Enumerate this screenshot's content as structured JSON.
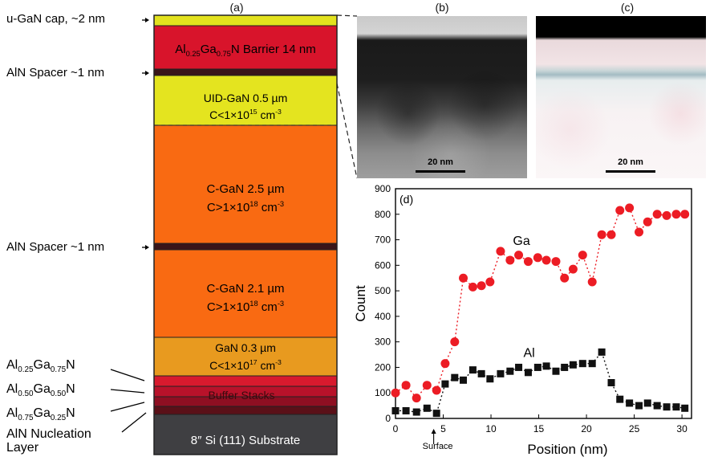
{
  "panel_labels": {
    "a": "(a)",
    "b": "(b)",
    "c": "(c)",
    "d": "(d)"
  },
  "stack": {
    "cap_label": "u-GaN cap, ~2 nm",
    "barrier_label": {
      "pre": "Al",
      "sub1": "0.25",
      "mid": "Ga",
      "sub2": "0.75",
      "post": "N Barrier 14 nm"
    },
    "spacer_label_top": "AlN Spacer ~1 nm",
    "uid_line1": "UID-GaN 0.5 µm",
    "uid_line2": {
      "pre": "C<1×10",
      "sup": "15",
      "post": " cm",
      "sup2": "-3"
    },
    "cgan1_line1": "C-GaN 2.5 µm",
    "cgan1_line2": {
      "pre": "C>1×10",
      "sup": "18",
      "post": " cm",
      "sup2": "-3"
    },
    "spacer_label_mid": "AlN Spacer ~1 nm",
    "cgan2_line1": "C-GaN 2.1 µm",
    "cgan2_line2": {
      "pre": "C>1×10",
      "sup": "18",
      "post": " cm",
      "sup2": "-3"
    },
    "gan_line1": "GaN 0.3 µm",
    "gan_line2": {
      "pre": "C<1×10",
      "sup": "17",
      "post": " cm",
      "sup2": "-3"
    },
    "buffer_label": "Buffer Stacks",
    "side_al25": {
      "pre": "Al",
      "sub1": "0.25",
      "mid": "Ga",
      "sub2": "0.75",
      "post": "N"
    },
    "side_al50": {
      "pre": "Al",
      "sub1": "0.50",
      "mid": "Ga",
      "sub2": "0.50",
      "post": "N"
    },
    "side_al75": {
      "pre": "Al",
      "sub1": "0.75",
      "mid": "Ga",
      "sub2": "0.25",
      "post": "N"
    },
    "nucleation_line1": "AlN Nucleation",
    "nucleation_line2": "Layer",
    "substrate_label": "8″ Si (111) Substrate",
    "colors": {
      "cap": "#e3e21e",
      "barrier": "#d8142b",
      "spacer": "#3a1519",
      "uid": "#e4e41f",
      "cgan": "#f96a12",
      "gan": "#e89a1f",
      "buffer_a": "#d81a2e",
      "buffer_b": "#b8122a",
      "buffer_c": "#8e0f22",
      "nucleation": "#5a1018",
      "substrate": "#3f3f42"
    }
  },
  "tem": {
    "scalebar_b": "20 nm",
    "scalebar_c": "20 nm"
  },
  "chart_data": {
    "type": "scatter",
    "xlabel": "Position (nm)",
    "ylabel": "Count",
    "xlim": [
      0,
      31
    ],
    "ylim": [
      0,
      900
    ],
    "xticks": [
      0,
      5,
      10,
      15,
      20,
      25,
      30
    ],
    "yticks": [
      0,
      100,
      200,
      300,
      400,
      500,
      600,
      700,
      800,
      900
    ],
    "annotation": "Surface",
    "annotation_x": 4,
    "series": [
      {
        "name": "Ga",
        "color": "#ec1c24",
        "marker": "circle",
        "x": [
          0,
          1.1,
          2.2,
          3.3,
          4.3,
          5.2,
          6.2,
          7.1,
          8.1,
          9.0,
          9.9,
          11.0,
          12.0,
          12.9,
          13.9,
          14.9,
          15.8,
          16.8,
          17.7,
          18.6,
          19.6,
          20.6,
          21.6,
          22.6,
          23.5,
          24.5,
          25.5,
          26.4,
          27.4,
          28.4,
          29.4,
          30.3
        ],
        "values": [
          100,
          130,
          80,
          130,
          110,
          215,
          300,
          550,
          515,
          520,
          535,
          655,
          620,
          640,
          615,
          630,
          620,
          615,
          550,
          585,
          640,
          535,
          720,
          720,
          815,
          825,
          730,
          770,
          800,
          795,
          800,
          800
        ]
      },
      {
        "name": "Al",
        "color": "#111111",
        "marker": "square",
        "x": [
          0,
          1.1,
          2.2,
          3.3,
          4.3,
          5.2,
          6.2,
          7.1,
          8.1,
          9.0,
          9.9,
          11.0,
          12.0,
          12.9,
          13.9,
          14.9,
          15.8,
          16.8,
          17.7,
          18.6,
          19.6,
          20.6,
          21.6,
          22.6,
          23.5,
          24.5,
          25.5,
          26.4,
          27.4,
          28.4,
          29.4,
          30.3
        ],
        "values": [
          30,
          30,
          25,
          40,
          20,
          135,
          160,
          150,
          190,
          175,
          155,
          175,
          185,
          200,
          180,
          200,
          205,
          185,
          200,
          210,
          215,
          215,
          260,
          140,
          75,
          60,
          50,
          60,
          50,
          45,
          45,
          40
        ]
      }
    ]
  }
}
